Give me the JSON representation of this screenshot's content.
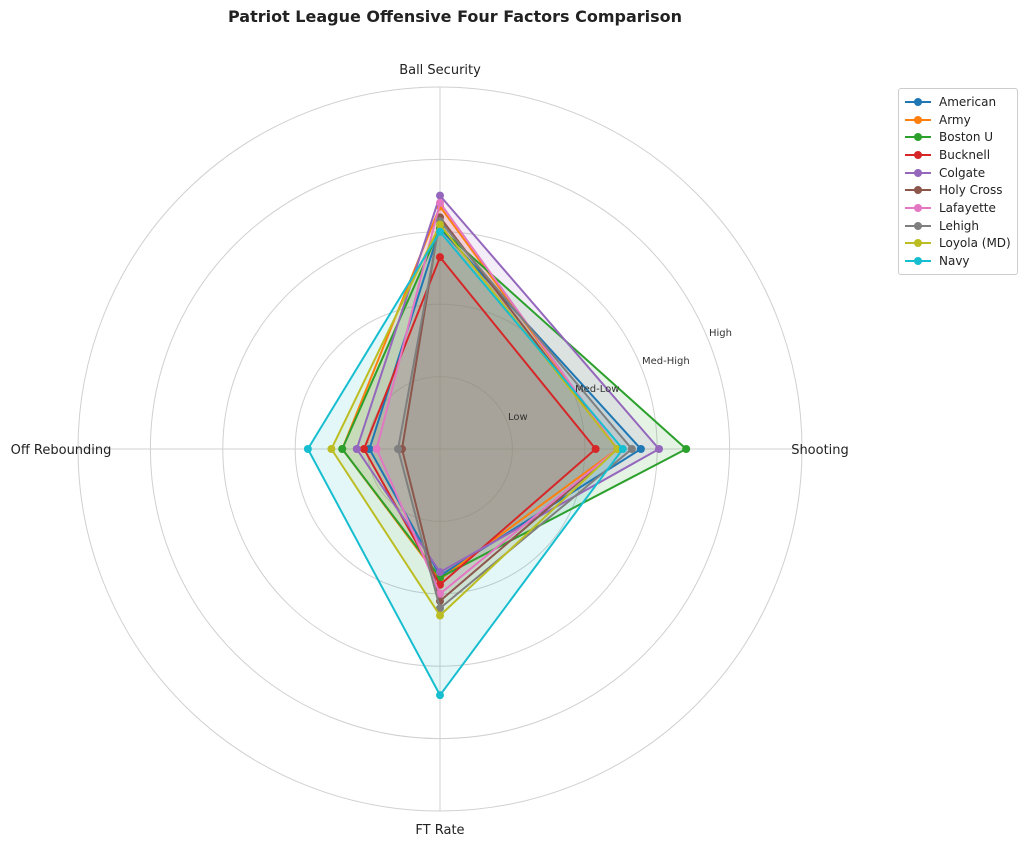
{
  "chart_data": {
    "type": "radar",
    "title": "Patriot League Offensive Four Factors Comparison",
    "axes": [
      "Shooting",
      "Ball Security",
      "Off Rebounding",
      "FT Rate"
    ],
    "rlim": [
      0,
      1
    ],
    "ring_values": [
      0.2,
      0.4,
      0.6,
      0.8,
      1.0
    ],
    "ring_labels": [
      "Low",
      "Med-Low",
      "Med-High",
      "High"
    ],
    "grid": true,
    "legend_position": "top-right",
    "series": [
      {
        "name": "American",
        "color": "#1f77b4",
        "values": [
          0.555,
          0.61,
          0.195,
          0.35
        ]
      },
      {
        "name": "Army",
        "color": "#ff7f0e",
        "values": [
          0.49,
          0.67,
          0.27,
          0.36
        ]
      },
      {
        "name": "Boston U",
        "color": "#2ca02c",
        "values": [
          0.68,
          0.61,
          0.27,
          0.355
        ]
      },
      {
        "name": "Bucknell",
        "color": "#d62728",
        "values": [
          0.43,
          0.53,
          0.21,
          0.375
        ]
      },
      {
        "name": "Colgate",
        "color": "#9467bd",
        "values": [
          0.605,
          0.7,
          0.23,
          0.34
        ]
      },
      {
        "name": "Holy Cross",
        "color": "#8c564b",
        "values": [
          0.49,
          0.64,
          0.105,
          0.42
        ]
      },
      {
        "name": "Lafayette",
        "color": "#e377c2",
        "values": [
          0.49,
          0.68,
          0.175,
          0.4
        ]
      },
      {
        "name": "Lehigh",
        "color": "#7f7f7f",
        "values": [
          0.53,
          0.63,
          0.116,
          0.44
        ]
      },
      {
        "name": "Loyola (MD)",
        "color": "#bcbd22",
        "values": [
          0.49,
          0.62,
          0.3,
          0.46
        ]
      },
      {
        "name": "Navy",
        "color": "#17becf",
        "values": [
          0.505,
          0.6,
          0.365,
          0.68
        ]
      }
    ]
  }
}
